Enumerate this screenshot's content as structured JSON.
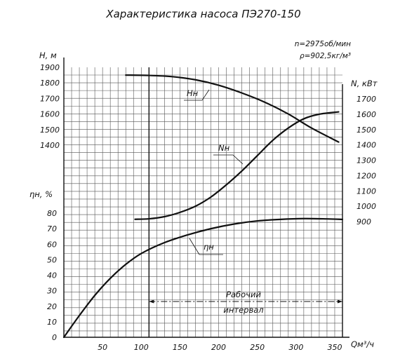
{
  "chart_data": {
    "type": "line",
    "title": "Характеристика насоса ПЭ270-150",
    "params": [
      "n=2975об/мин",
      "ρ=902,5кг/м³"
    ],
    "axes": {
      "x": {
        "label": "Qм³/ч",
        "ticks": [
          50,
          100,
          150,
          200,
          250,
          300,
          350
        ],
        "range": [
          0,
          360
        ]
      },
      "y_head": {
        "label": "H, м",
        "ticks": [
          1400,
          1500,
          1600,
          1700,
          1800,
          1900
        ],
        "range": [
          1380,
          1900
        ]
      },
      "y_power": {
        "label": "N, кВт",
        "ticks": [
          900,
          1000,
          1100,
          1200,
          1300,
          1400,
          1500,
          1600,
          1700
        ],
        "range": [
          880,
          1760
        ]
      },
      "y_eff": {
        "label": "ηн, %",
        "ticks": [
          0,
          10,
          20,
          30,
          40,
          50,
          60,
          70,
          80
        ],
        "range": [
          0,
          86
        ]
      }
    },
    "series": [
      {
        "name": "Hн",
        "axis": "y_head",
        "points": [
          [
            80,
            1850
          ],
          [
            110,
            1848
          ],
          [
            140,
            1840
          ],
          [
            170,
            1820
          ],
          [
            200,
            1785
          ],
          [
            230,
            1735
          ],
          [
            260,
            1675
          ],
          [
            290,
            1600
          ],
          [
            320,
            1510
          ],
          [
            355,
            1420
          ]
        ]
      },
      {
        "name": "Nн",
        "axis": "y_power",
        "points": [
          [
            92,
            915
          ],
          [
            110,
            918
          ],
          [
            130,
            932
          ],
          [
            150,
            960
          ],
          [
            170,
            1000
          ],
          [
            190,
            1060
          ],
          [
            210,
            1140
          ],
          [
            230,
            1230
          ],
          [
            250,
            1330
          ],
          [
            270,
            1430
          ],
          [
            290,
            1510
          ],
          [
            310,
            1570
          ],
          [
            330,
            1600
          ],
          [
            355,
            1615
          ]
        ]
      },
      {
        "name": "ηн",
        "axis": "y_eff",
        "points": [
          [
            0,
            0
          ],
          [
            20,
            14
          ],
          [
            40,
            27
          ],
          [
            60,
            38
          ],
          [
            80,
            47
          ],
          [
            100,
            54
          ],
          [
            130,
            61
          ],
          [
            160,
            66
          ],
          [
            190,
            70
          ],
          [
            220,
            73
          ],
          [
            250,
            75
          ],
          [
            280,
            76
          ],
          [
            310,
            76.5
          ],
          [
            340,
            76.3
          ],
          [
            360,
            76
          ]
        ]
      }
    ],
    "annotations": {
      "working_range": {
        "label_line1": "Рабочий",
        "label_line2": "интервал",
        "range": [
          110,
          360
        ]
      }
    },
    "grid": true
  }
}
